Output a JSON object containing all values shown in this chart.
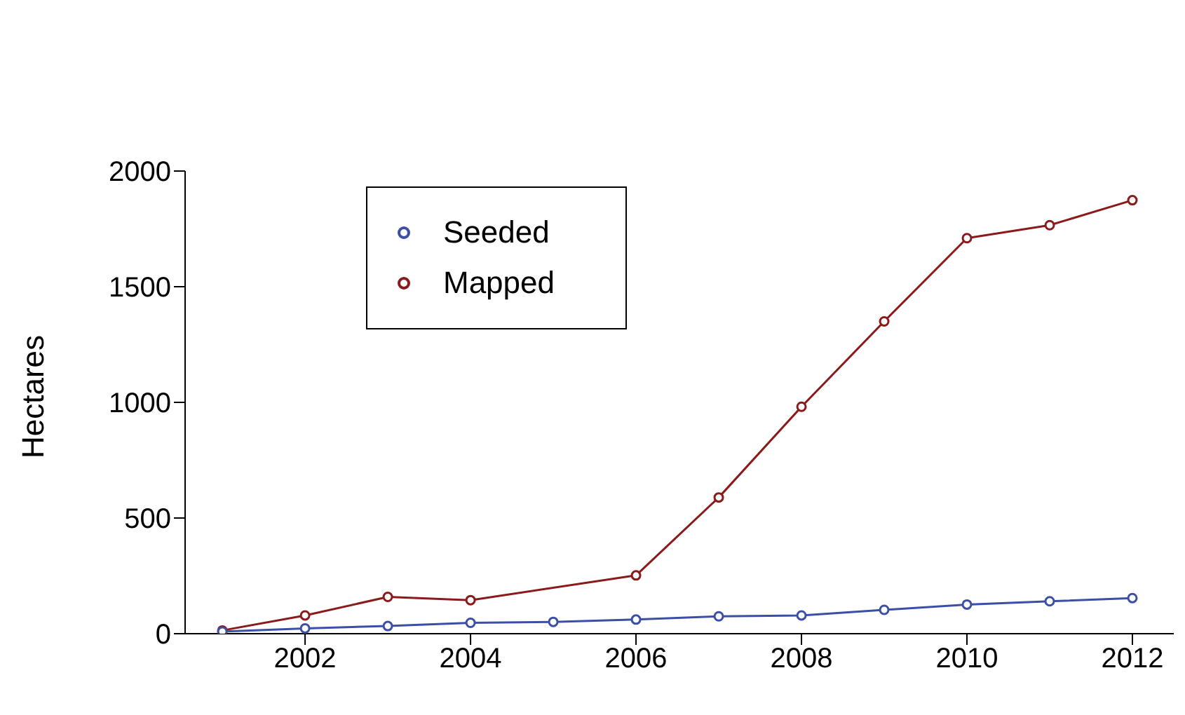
{
  "chart_data": {
    "type": "line",
    "ylabel": "Hectares",
    "xlim": [
      2000.55,
      2012.5
    ],
    "xticks": [
      2002,
      2004,
      2006,
      2008,
      2010,
      2012
    ],
    "ylim": [
      0,
      2000
    ],
    "yticks": [
      0,
      500,
      1000,
      1500,
      2000
    ],
    "grid": false,
    "legend": "top left",
    "marker": "circle",
    "line_style": "solid",
    "series": [
      {
        "name": "Seeded",
        "color": "#3b4fa8",
        "x": [
          2001,
          2002,
          2003,
          2004,
          2005,
          2006,
          2007,
          2008,
          2009,
          2010,
          2011,
          2012
        ],
        "values": [
          9,
          23,
          33,
          47,
          51,
          61,
          75,
          79,
          103,
          126,
          140,
          154
        ]
      },
      {
        "name": "Mapped",
        "color": "#8b1a1a",
        "x": [
          2001,
          2002,
          2003,
          2004,
          2006,
          2007,
          2008,
          2009,
          2010,
          2011,
          2012
        ],
        "values": [
          14,
          79,
          159,
          145,
          252,
          589,
          981,
          1350,
          1710,
          1766,
          1874
        ]
      }
    ]
  }
}
